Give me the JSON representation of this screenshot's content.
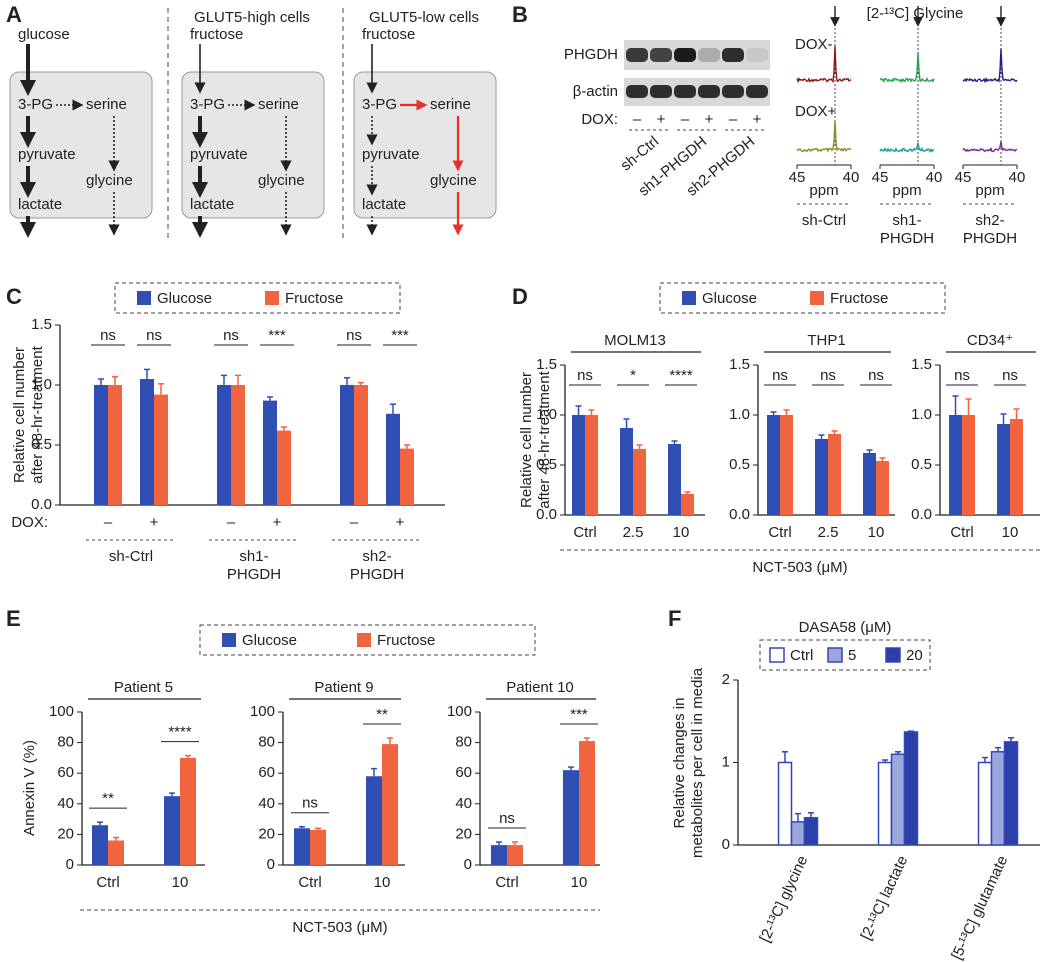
{
  "panel_a": {
    "letter": "A",
    "columns": [
      {
        "input": "glucose",
        "nodes": [
          "3-PG",
          "serine",
          "pyruvate",
          "glycine",
          "lactate"
        ]
      },
      {
        "header": "GLUT5-high cells",
        "input": "fructose",
        "nodes": [
          "3-PG",
          "serine",
          "pyruvate",
          "glycine",
          "lactate"
        ]
      },
      {
        "header": "GLUT5-low cells",
        "input": "fructose",
        "nodes": [
          "3-PG",
          "serine",
          "pyruvate",
          "glycine",
          "lactate"
        ]
      }
    ]
  },
  "panel_b": {
    "letter": "B",
    "blot_labels": [
      "PHGDH",
      "β-actin"
    ],
    "dox_label": "DOX:",
    "lanes": [
      "–",
      "+",
      "–",
      "+",
      "–",
      "+"
    ],
    "samples": [
      "sh-Ctrl",
      "sh1-PHGDH",
      "sh2-PHGDH"
    ],
    "nmr_title": "[2-¹³C] Glycine",
    "conditions": [
      "DOX-",
      "DOX+"
    ],
    "spectra": [
      {
        "label": [
          "sh-Ctrl"
        ],
        "colors": [
          "#8b1a1a",
          "#8c8c2a"
        ]
      },
      {
        "label": [
          "sh1-",
          "PHGDH"
        ],
        "colors": [
          "#2aa04a",
          "#1a9a9a"
        ]
      },
      {
        "label": [
          "sh2-",
          "PHGDH"
        ],
        "colors": [
          "#22228a",
          "#7a2a9a"
        ]
      }
    ],
    "xticks": [
      45,
      40
    ],
    "x_label": "ppm"
  },
  "chart_data": [
    {
      "type": "bar",
      "panel": "C",
      "y_label": [
        "Relative cell number",
        "after 48-hr-treatment"
      ],
      "dox_label": "DOX:",
      "categories": [
        "–",
        "+",
        "–",
        "+",
        "–",
        "+"
      ],
      "groups": [
        [
          "sh-Ctrl"
        ],
        [
          "sh1-",
          "PHGDH"
        ],
        [
          "sh2-",
          "PHGDH"
        ]
      ],
      "series": [
        {
          "name": "Glucose",
          "color": "#2f4fb5",
          "values": [
            1.0,
            1.05,
            1.0,
            0.87,
            1.0,
            0.76
          ],
          "errors": [
            0.05,
            0.08,
            0.08,
            0.03,
            0.06,
            0.08
          ]
        },
        {
          "name": "Fructose",
          "color": "#f0643f",
          "values": [
            1.0,
            0.92,
            1.0,
            0.62,
            1.0,
            0.47
          ],
          "errors": [
            0.07,
            0.09,
            0.08,
            0.03,
            0.02,
            0.03
          ]
        }
      ],
      "significance": [
        "ns",
        "ns",
        "ns",
        "***",
        "ns",
        "***"
      ],
      "ylim": [
        0,
        1.5
      ],
      "yticks": [
        {
          "value": 0,
          "label": "0.0"
        },
        0.5,
        {
          "value": 1,
          "label": "1.0"
        },
        1.5
      ]
    },
    {
      "type": "bar",
      "panel": "D",
      "title": "MOLM13",
      "y_label": [
        "Relative cell number",
        "after 48-hr-treatment"
      ],
      "x_label": "NCT-503 (μM)",
      "categories": [
        "Ctrl",
        "2.5",
        "10"
      ],
      "series": [
        {
          "name": "Glucose",
          "color": "#2f4fb5",
          "values": [
            1.0,
            0.87,
            0.71
          ],
          "errors": [
            0.09,
            0.09,
            0.03
          ]
        },
        {
          "name": "Fructose",
          "color": "#f0643f",
          "values": [
            1.0,
            0.66,
            0.21
          ],
          "errors": [
            0.05,
            0.04,
            0.02
          ]
        }
      ],
      "significance": [
        "ns",
        "*",
        "****"
      ],
      "ylim": [
        0,
        1.5
      ],
      "yticks": [
        {
          "value": 0,
          "label": "0.0"
        },
        0.5,
        {
          "value": 1,
          "label": "1.0"
        },
        1.5
      ]
    },
    {
      "type": "bar",
      "title": "THP1",
      "categories": [
        "Ctrl",
        "2.5",
        "10"
      ],
      "series": [
        {
          "color": "#2f4fb5",
          "values": [
            1.0,
            0.76,
            0.62
          ],
          "errors": [
            0.03,
            0.04,
            0.03
          ]
        },
        {
          "color": "#f0643f",
          "values": [
            1.0,
            0.81,
            0.54
          ],
          "errors": [
            0.05,
            0.03,
            0.03
          ]
        }
      ],
      "significance": [
        "ns",
        "ns",
        "ns"
      ],
      "ylim": [
        0,
        1.5
      ],
      "yticks": [
        {
          "value": 0,
          "label": "0.0"
        },
        0.5,
        {
          "value": 1,
          "label": "1.0"
        },
        1.5
      ]
    },
    {
      "type": "bar",
      "title": "CD34⁺",
      "categories": [
        "Ctrl",
        "10"
      ],
      "series": [
        {
          "color": "#2f4fb5",
          "values": [
            1.0,
            0.91
          ],
          "errors": [
            0.19,
            0.1
          ]
        },
        {
          "color": "#f0643f",
          "values": [
            1.0,
            0.96
          ],
          "errors": [
            0.16,
            0.1
          ]
        }
      ],
      "significance": [
        "ns",
        "ns"
      ],
      "ylim": [
        0,
        1.5
      ],
      "yticks": [
        {
          "value": 0,
          "label": "0.0"
        },
        0.5,
        {
          "value": 1,
          "label": "1.0"
        },
        1.5
      ]
    },
    {
      "type": "bar",
      "panel": "E",
      "title": "Patient 5",
      "y_label": [
        "Annexin V (%)"
      ],
      "x_label": "NCT-503 (μM)",
      "categories": [
        "Ctrl",
        "10"
      ],
      "series": [
        {
          "name": "Glucose",
          "color": "#2f4fb5",
          "values": [
            26,
            45
          ],
          "errors": [
            2,
            2
          ]
        },
        {
          "name": "Fructose",
          "color": "#f0643f",
          "values": [
            16,
            70
          ],
          "errors": [
            2,
            1.5
          ]
        }
      ],
      "significance": [
        "**",
        "****"
      ],
      "ylim": [
        0,
        100
      ],
      "yticks": [
        0,
        20,
        40,
        60,
        80,
        100
      ]
    },
    {
      "type": "bar",
      "title": "Patient 9",
      "categories": [
        "Ctrl",
        "10"
      ],
      "series": [
        {
          "color": "#2f4fb5",
          "values": [
            24,
            58
          ],
          "errors": [
            1,
            5
          ]
        },
        {
          "color": "#f0643f",
          "values": [
            23,
            79
          ],
          "errors": [
            1,
            4
          ]
        }
      ],
      "significance": [
        "ns",
        "**"
      ],
      "ylim": [
        0,
        100
      ],
      "yticks": [
        0,
        20,
        40,
        60,
        80,
        100
      ]
    },
    {
      "type": "bar",
      "title": "Patient 10",
      "categories": [
        "Ctrl",
        "10"
      ],
      "series": [
        {
          "color": "#2f4fb5",
          "values": [
            13,
            62
          ],
          "errors": [
            2,
            2
          ]
        },
        {
          "color": "#f0643f",
          "values": [
            13,
            81
          ],
          "errors": [
            2,
            2
          ]
        }
      ],
      "significance": [
        "ns",
        "***"
      ],
      "ylim": [
        0,
        100
      ],
      "yticks": [
        0,
        20,
        40,
        60,
        80,
        100
      ]
    },
    {
      "type": "bar",
      "panel": "F",
      "legend_title": "DASA58 (μM)",
      "y_label": [
        "Relative changes in",
        "metabolites per cell in media"
      ],
      "categories": [
        "[2-¹³C] glycine",
        "[2-¹³C] lactate",
        "[5-¹³C] glutamate"
      ],
      "edge_color": "#3347b8",
      "series": [
        {
          "name": "Ctrl",
          "color": "#ffffff",
          "values": [
            1.0,
            1.0,
            1.0
          ],
          "errors": [
            0.13,
            0.03,
            0.06
          ]
        },
        {
          "name": "5",
          "color": "#9aa6dc",
          "values": [
            0.28,
            1.1,
            1.13
          ],
          "errors": [
            0.1,
            0.03,
            0.05
          ]
        },
        {
          "name": "20",
          "color": "#2a3fa8",
          "values": [
            0.33,
            1.37,
            1.25
          ],
          "errors": [
            0.06,
            0.01,
            0.05
          ]
        }
      ],
      "ylim": [
        0,
        2
      ],
      "yticks": [
        0,
        1,
        2
      ]
    }
  ]
}
